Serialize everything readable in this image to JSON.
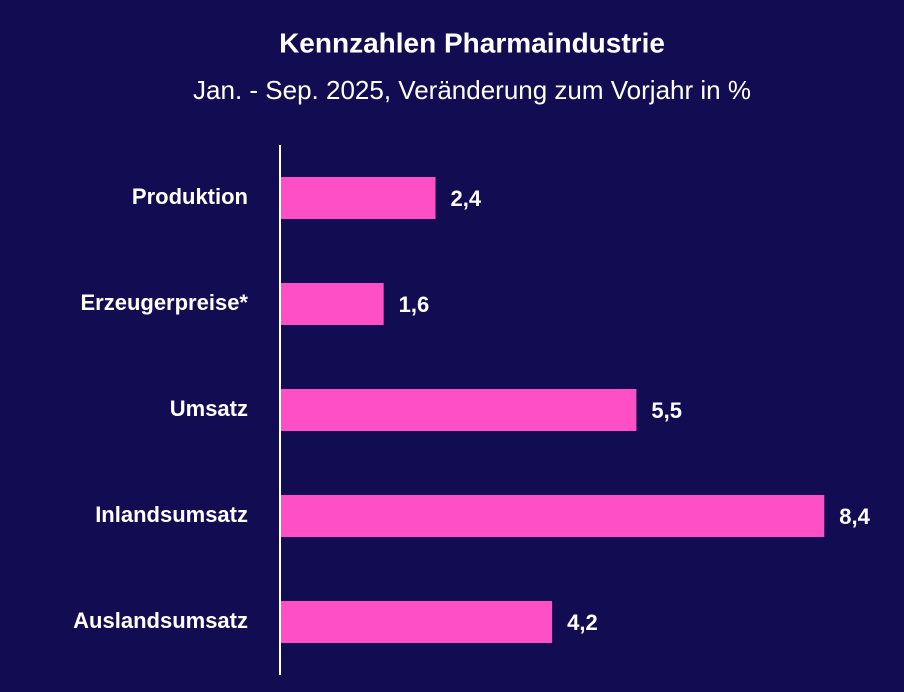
{
  "chart_data": {
    "type": "barh",
    "title": "Kennzahlen Pharmaindustrie",
    "subtitle": "Jan. - Sep. 2025, Veränderung zum Vorjahr in %",
    "categories": [
      "Produktion",
      "Erzeugerpreise*",
      "Umsatz",
      "Inlandsumsatz",
      "Auslandsumsatz"
    ],
    "values": [
      2.4,
      1.6,
      5.5,
      8.4,
      4.2
    ],
    "value_labels": [
      "2,4",
      "1,6",
      "5,5",
      "8,4",
      "4,2"
    ],
    "color": "#ff4fc6",
    "xlim": [
      0,
      9.6
    ]
  }
}
